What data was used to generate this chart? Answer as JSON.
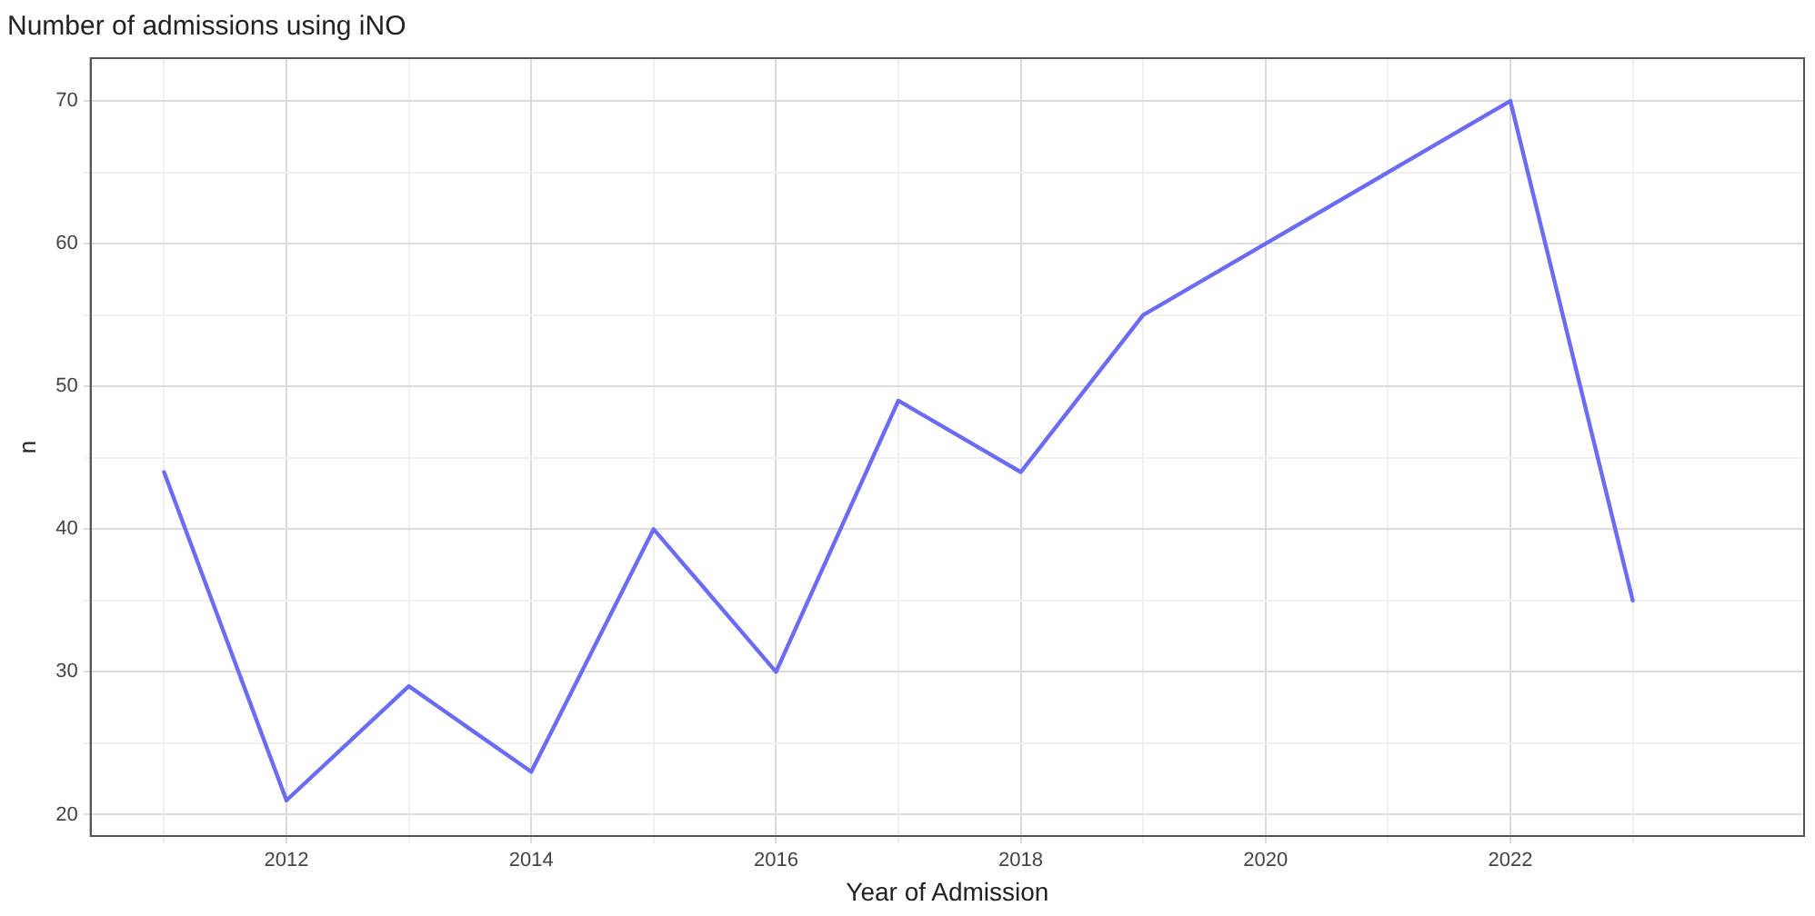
{
  "chart_data": {
    "type": "line",
    "title": "Number of admissions using iNO",
    "xlabel": "Year of Admission",
    "ylabel": "n",
    "x": [
      2011,
      2012,
      2013,
      2014,
      2015,
      2016,
      2017,
      2018,
      2019,
      2020,
      2021,
      2022,
      2023
    ],
    "series": [
      {
        "color": "#6b6bf5",
        "values": [
          44,
          21,
          29,
          23,
          40,
          30,
          49,
          44,
          55,
          60,
          65,
          70,
          35
        ]
      }
    ],
    "xlim": [
      2010.4,
      2024.4
    ],
    "xticks": [
      {
        "value": 2011,
        "label": null
      },
      2012,
      {
        "value": 2013,
        "label": null
      },
      2014,
      {
        "value": 2015,
        "label": null
      },
      2016,
      {
        "value": 2017,
        "label": null
      },
      2018,
      {
        "value": 2019,
        "label": null
      },
      2020,
      {
        "value": 2021,
        "label": null
      },
      2022,
      {
        "value": 2023,
        "label": null
      }
    ],
    "ylim": [
      18.5,
      73
    ],
    "yticks": [
      20,
      {
        "value": 25,
        "label": null
      },
      30,
      {
        "value": 35,
        "label": null
      },
      40,
      {
        "value": 45,
        "label": null
      },
      50,
      {
        "value": 55,
        "label": null
      },
      60,
      {
        "value": 65,
        "label": null
      },
      70
    ],
    "grid": true,
    "legend": false,
    "marker": "none",
    "line_style": "solid"
  }
}
